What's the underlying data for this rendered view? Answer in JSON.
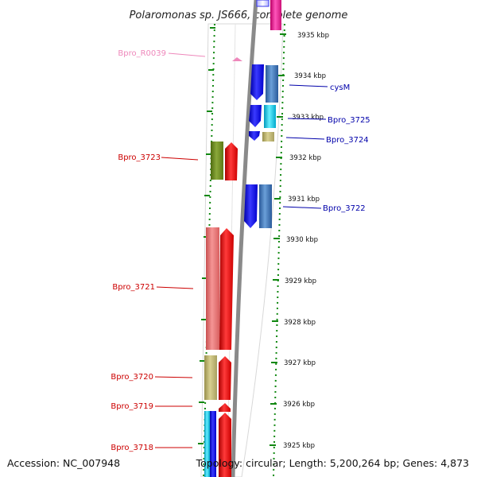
{
  "title": "Polaromonas sp. JS666, complete genome",
  "footer": {
    "accession": "Accession: NC_007948",
    "summary": "Topology: circular; Length: 5,200,264 bp; Genes: 4,873"
  },
  "colors": {
    "forward_red": "#ff0000",
    "reverse_blue": "#1010ee",
    "steel_blue": "#4a7fc0",
    "light_red": "#ee7a7a",
    "olive": "#6e8a1e",
    "khaki": "#b8b070",
    "cyan": "#22ccee",
    "magenta": "#ee2299",
    "rna_pink": "#ee88bb",
    "tick_green": "#118811",
    "forward_label": "#cc0000",
    "reverse_label": "#0000aa"
  },
  "scale": {
    "ticks": [
      "3935 kbp",
      "3934 kbp",
      "3933 kbp",
      "3932 kbp",
      "3931 kbp",
      "3930 kbp",
      "3929 kbp",
      "3928 kbp",
      "3927 kbp",
      "3926 kbp",
      "3925 kbp"
    ]
  },
  "gene_labels": [
    {
      "name": "Bpro_R0039",
      "strand": "rna"
    },
    {
      "name": "cysM",
      "strand": "reverse"
    },
    {
      "name": "Bpro_3725",
      "strand": "reverse"
    },
    {
      "name": "Bpro_3724",
      "strand": "reverse"
    },
    {
      "name": "Bpro_3723",
      "strand": "forward"
    },
    {
      "name": "Bpro_3722",
      "strand": "reverse"
    },
    {
      "name": "Bpro_3721",
      "strand": "forward"
    },
    {
      "name": "Bpro_3720",
      "strand": "forward"
    },
    {
      "name": "Bpro_3719",
      "strand": "forward"
    },
    {
      "name": "Bpro_3718",
      "strand": "forward"
    }
  ]
}
